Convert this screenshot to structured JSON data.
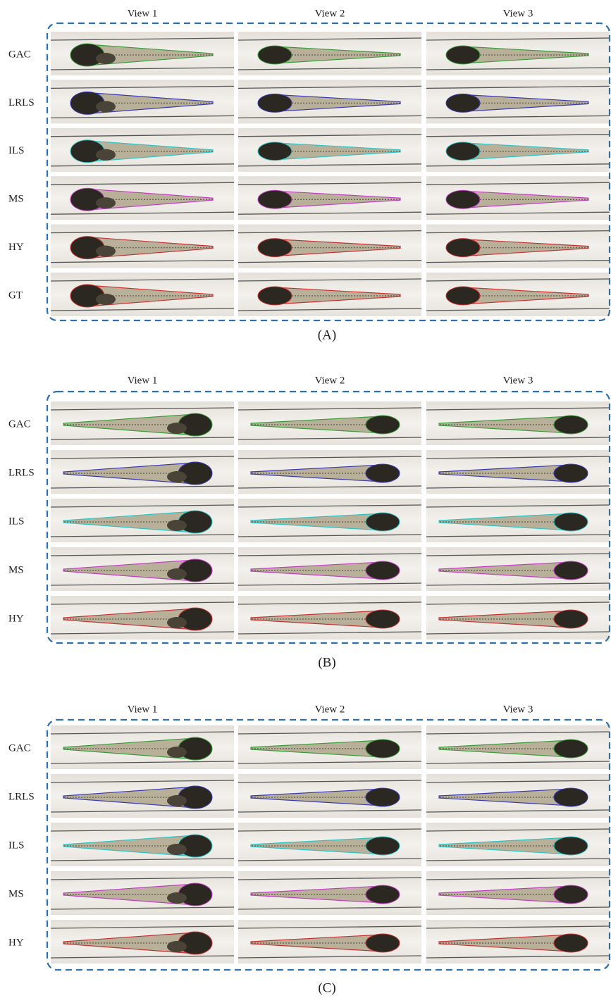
{
  "panels": [
    {
      "columns": [
        "View 1",
        "View 2",
        "View 3"
      ],
      "rows": [
        "GAC",
        "LRLS",
        "ILS",
        "MS",
        "HY",
        "GT"
      ],
      "caption": "(A)"
    },
    {
      "columns": [
        "View 1",
        "View 2",
        "View 3"
      ],
      "rows": [
        "GAC",
        "LRLS",
        "ILS",
        "MS",
        "HY"
      ],
      "caption": "(B)"
    },
    {
      "columns": [
        "View 1",
        "View 2",
        "View 3"
      ],
      "rows": [
        "GAC",
        "LRLS",
        "ILS",
        "MS",
        "HY"
      ],
      "caption": "(C)"
    }
  ]
}
